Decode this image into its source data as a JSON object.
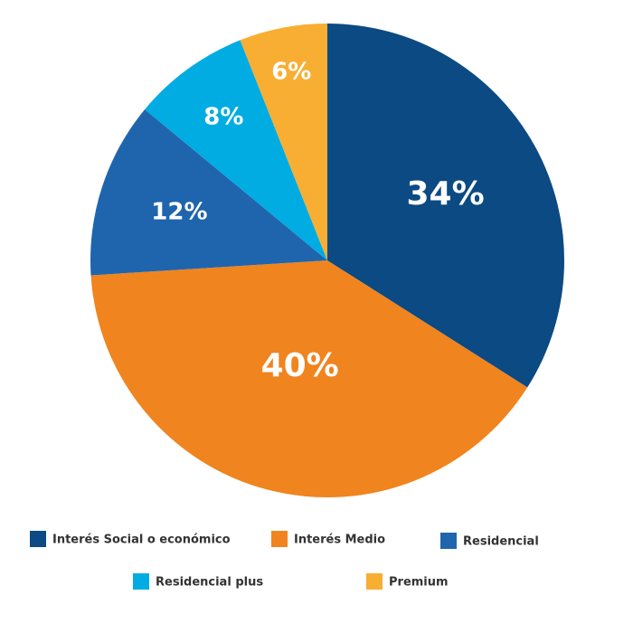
{
  "chart_data": {
    "type": "pie",
    "categories": [
      "Interés Social o económico",
      "Interés Medio",
      "Residencial",
      "Residencial plus",
      "Premium"
    ],
    "values": [
      34,
      40,
      12,
      8,
      6
    ],
    "value_labels": [
      "34%",
      "40%",
      "12%",
      "8%",
      "6%"
    ],
    "colors": [
      "#0b4a82",
      "#f0841e",
      "#1f65ad",
      "#00ace2",
      "#f8ae33"
    ]
  }
}
